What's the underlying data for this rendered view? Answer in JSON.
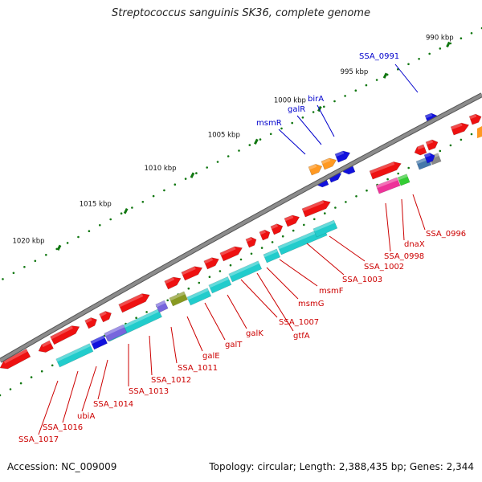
{
  "title": "Streptococcus sanguinis SK36, complete genome",
  "footer": {
    "accession": "Accession: NC_009009",
    "summary": "Topology: circular; Length: 2,388,435 bp; Genes: 2,344"
  },
  "colors": {
    "backbone": "#8c8c8c",
    "gene_red": "#ee1111",
    "gene_cyan": "#22cccc",
    "gene_blue": "#1111dd",
    "gene_orange": "#ff9922",
    "gene_magenta": "#ee3399",
    "gene_green": "#33cc33",
    "gene_purple": "#7766dd",
    "gene_olive": "#889922",
    "gene_steel": "#4477aa",
    "gene_grey": "#888888",
    "label_red": "#cc0000",
    "label_blue": "#0000cc",
    "tick_green": "#117711"
  },
  "scale": {
    "ticks": [
      "990 kbp",
      "995 kbp",
      "1000 kbp",
      "1005 kbp",
      "1010 kbp",
      "1015 kbp",
      "1020 kbp"
    ]
  },
  "gene_labels_top": [
    "SSA_0991",
    "birA",
    "galR",
    "msmR"
  ],
  "gene_labels_bottom": [
    "SSA_0996",
    "dnaX",
    "SSA_0998",
    "SSA_1002",
    "SSA_1003",
    "msmF",
    "msmG",
    "SSA_1007",
    "gtfA",
    "galK",
    "galT",
    "galE",
    "SSA_1011",
    "SSA_1012",
    "SSA_1013",
    "SSA_1014",
    "ubiA",
    "SSA_1016",
    "SSA_1017"
  ]
}
